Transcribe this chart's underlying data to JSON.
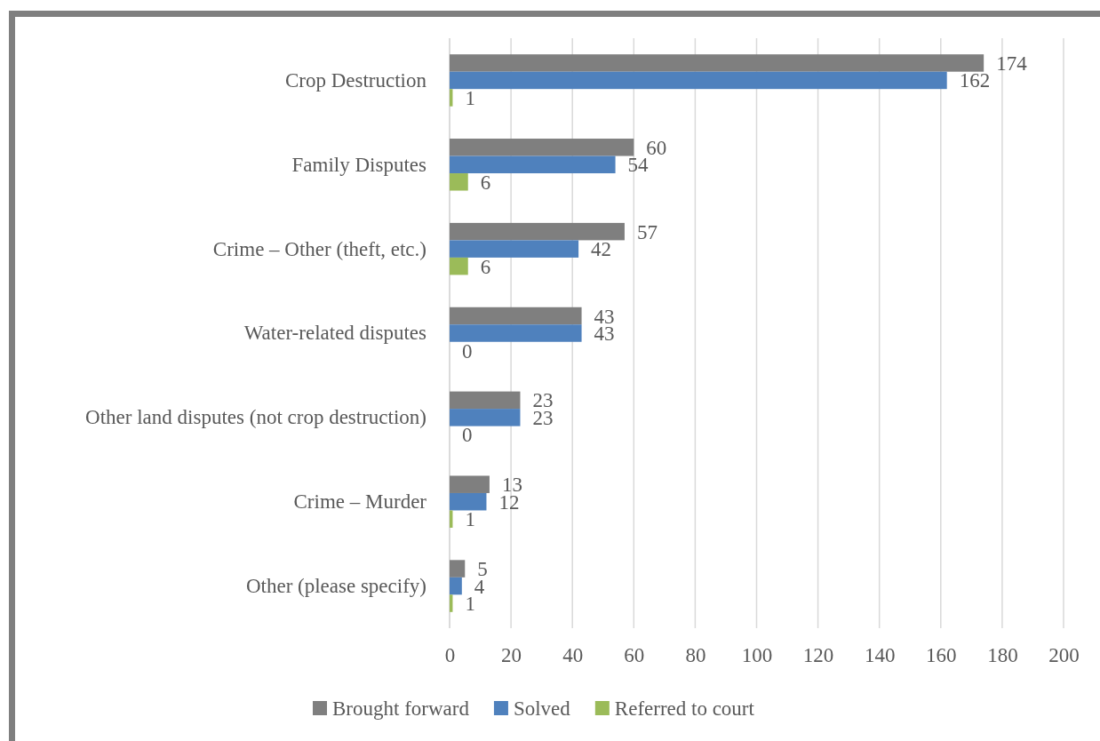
{
  "chart_data": {
    "type": "bar",
    "orientation": "horizontal",
    "categories": [
      "Crop Destruction",
      "Family Disputes",
      "Crime – Other (theft, etc.)",
      "Water-related disputes",
      "Other land disputes (not crop destruction)",
      "Crime – Murder",
      "Other (please specify)"
    ],
    "series": [
      {
        "name": "Brought forward",
        "color": "#7f7f7f",
        "values": [
          174,
          60,
          57,
          43,
          23,
          13,
          5
        ]
      },
      {
        "name": "Solved",
        "color": "#4f81bd",
        "values": [
          162,
          54,
          42,
          43,
          23,
          12,
          4
        ]
      },
      {
        "name": "Referred to court",
        "color": "#9bbb59",
        "values": [
          1,
          6,
          6,
          0,
          0,
          1,
          1
        ]
      }
    ],
    "xlim": [
      0,
      200
    ],
    "xticks": [
      0,
      20,
      40,
      60,
      80,
      100,
      120,
      140,
      160,
      180,
      200
    ],
    "grid": "x",
    "legend": "bottom",
    "data_labels": true
  }
}
